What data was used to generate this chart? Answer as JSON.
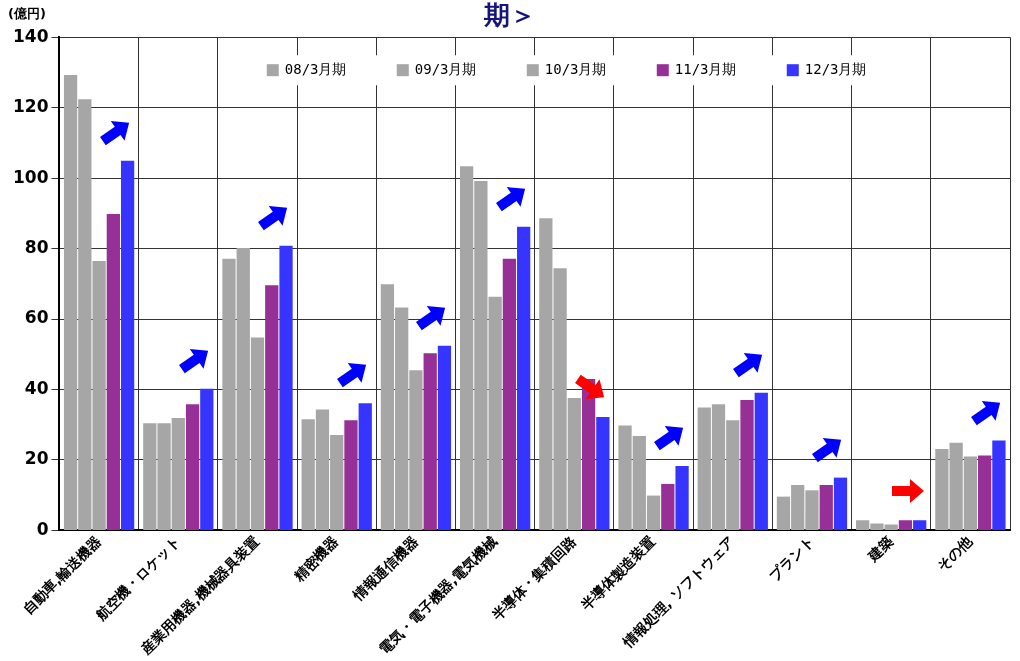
{
  "chart_data": {
    "type": "bar",
    "title": "期＞",
    "ylabel": "(億円)",
    "categories": [
      "自動車,輸送機器",
      "航空機・ロケット",
      "産業用機器,機械器具装置",
      "精密機器",
      "情報通信機器",
      "電気・電子機器,電気機械",
      "半導体・集積回路",
      "半導体製造装置",
      "情報処理, ソフトウェア",
      "プラント",
      "建築",
      "その他"
    ],
    "series": [
      {
        "name": "08/3月期",
        "color": "#a6a6a6",
        "values": [
          129.3,
          30.4,
          77.1,
          31.6,
          69.9,
          103.4,
          88.6,
          29.8,
          34.9,
          9.6,
          2.9,
          23.1
        ]
      },
      {
        "name": "09/3月期",
        "color": "#a6a6a6",
        "values": [
          122.4,
          30.4,
          80.2,
          34.3,
          63.3,
          99.2,
          74.4,
          26.8,
          35.8,
          12.9,
          2.0,
          24.9
        ]
      },
      {
        "name": "10/3月期",
        "color": "#a6a6a6",
        "values": [
          76.5,
          31.9,
          54.8,
          27.1,
          45.5,
          66.3,
          37.6,
          9.9,
          31.3,
          11.4,
          1.7,
          21.0
        ]
      },
      {
        "name": "11/3月期",
        "color": "#962f96",
        "values": [
          89.8,
          35.8,
          69.6,
          31.3,
          50.3,
          77.1,
          43.0,
          13.2,
          37.0,
          12.9,
          2.9,
          21.3
        ]
      },
      {
        "name": "12/3月期",
        "color": "#3535ff",
        "values": [
          104.9,
          40.2,
          80.8,
          36.1,
          52.4,
          86.2,
          32.2,
          18.3,
          39.1,
          15.0,
          2.9,
          25.5
        ]
      }
    ],
    "ylim": [
      0,
      140
    ],
    "yticks": [
      0,
      20,
      40,
      60,
      80,
      100,
      120,
      140
    ],
    "grid": true,
    "legend": "top"
  }
}
